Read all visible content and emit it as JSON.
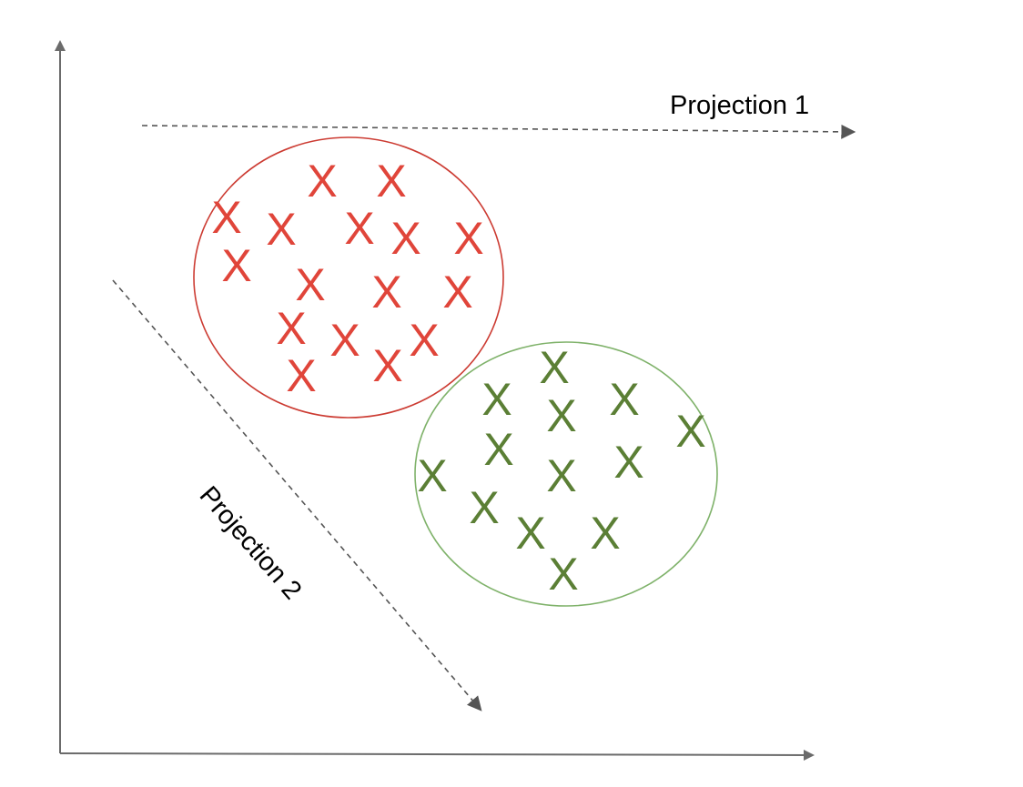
{
  "diagram": {
    "projection_1_label": "Projection 1",
    "projection_2_label": "Projection 2",
    "marker_glyph": "X"
  },
  "colors": {
    "axis": "#6b6b6b",
    "dashed_arrow": "#555555",
    "red_cluster": "#e0453a",
    "red_circle": "#cc3b32",
    "green_cluster": "#5b7f35",
    "green_circle": "#7fb26a"
  }
}
